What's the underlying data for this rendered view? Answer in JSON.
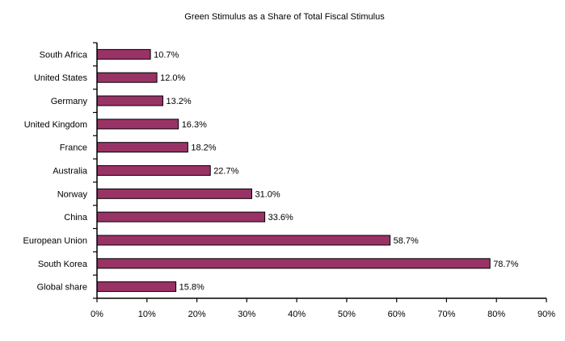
{
  "chart_data": {
    "type": "bar",
    "orientation": "horizontal",
    "title": "Green Stimulus as a Share of Total Fiscal Stimulus",
    "categories": [
      "South Africa",
      "United States",
      "Germany",
      "United Kingdom",
      "France",
      "Australia",
      "Norway",
      "China",
      "European Union",
      "South Korea",
      "Global share"
    ],
    "values": [
      10.7,
      12.0,
      13.2,
      16.3,
      18.2,
      22.7,
      31.0,
      33.6,
      58.7,
      78.7,
      15.8
    ],
    "value_labels": [
      "10.7%",
      "12.0%",
      "13.2%",
      "16.3%",
      "18.2%",
      "22.7%",
      "31.0%",
      "33.6%",
      "58.7%",
      "78.7%",
      "15.8%"
    ],
    "xlim": [
      0,
      90
    ],
    "x_ticks": [
      0,
      10,
      20,
      30,
      40,
      50,
      60,
      70,
      80,
      90
    ],
    "x_tick_labels": [
      "0%",
      "10%",
      "20%",
      "30%",
      "40%",
      "50%",
      "60%",
      "70%",
      "80%",
      "90%"
    ],
    "xlabel": "",
    "ylabel": "",
    "grid": false,
    "legend": "none",
    "bar_color": "#993366"
  }
}
